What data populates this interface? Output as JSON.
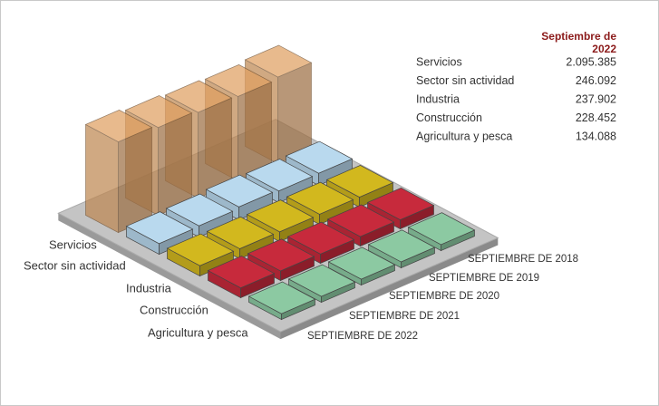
{
  "chart_data": {
    "type": "bar3d",
    "legend_title": "Septiembre de 2022",
    "categories": [
      "SEPTIEMBRE DE 2018",
      "SEPTIEMBRE DE 2019",
      "SEPTIEMBRE DE 2020",
      "SEPTIEMBRE DE 2021",
      "SEPTIEMBRE DE 2022"
    ],
    "series": [
      {
        "name": "Servicios",
        "color": "#e0a062",
        "values": [
          2000000,
          1950000,
          1980000,
          2030000,
          2095385
        ],
        "value_labels": [
          null,
          null,
          null,
          null,
          "2.095.385"
        ]
      },
      {
        "name": "Sector sin actividad",
        "color": "#b9d9ee",
        "values": [
          280000,
          270000,
          300000,
          260000,
          246092
        ],
        "value_labels": [
          null,
          null,
          null,
          null,
          "246.092"
        ]
      },
      {
        "name": "Industria",
        "color": "#d2b81e",
        "values": [
          230000,
          235000,
          225000,
          232000,
          237902
        ],
        "value_labels": [
          null,
          null,
          null,
          null,
          "237.902"
        ]
      },
      {
        "name": "Construcción",
        "color": "#c72a3c",
        "values": [
          210000,
          220000,
          215000,
          222000,
          228452
        ],
        "value_labels": [
          null,
          null,
          null,
          null,
          "228.452"
        ]
      },
      {
        "name": "Agricultura y pesca",
        "color": "#8cc9a2",
        "values": [
          140000,
          138000,
          136000,
          135000,
          134088
        ],
        "value_labels": [
          null,
          null,
          null,
          null,
          "134.088"
        ]
      }
    ]
  }
}
